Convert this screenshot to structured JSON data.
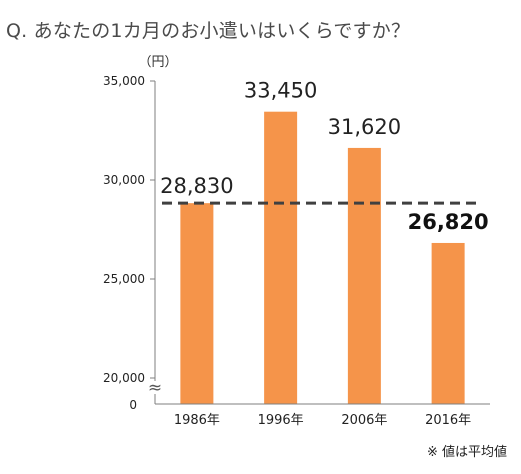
{
  "question": "Q. あなたの1カ月のお小遣いはいくらですか？",
  "footnote": "※ 値は平均値",
  "chart_data": {
    "type": "bar",
    "title": "",
    "unit": "（円）",
    "categories": [
      "1986年",
      "1996年",
      "2006年",
      "2016年"
    ],
    "values": [
      28830,
      33450,
      31620,
      26820
    ],
    "value_labels": [
      "28,830",
      "33,450",
      "31,620",
      "26,820"
    ],
    "highlight_index": 3,
    "yticks": [
      {
        "value": 20000,
        "label": "20,000"
      },
      {
        "value": 25000,
        "label": "25,000"
      },
      {
        "value": 30000,
        "label": "30,000"
      },
      {
        "value": 35000,
        "label": "35,000"
      }
    ],
    "zero_label": "0",
    "axis_break_symbol": "≈",
    "ylim": [
      20000,
      35000
    ],
    "average_line": 28830,
    "bar_color": "#f5944a",
    "average_line_color": "#404040",
    "grid": false
  }
}
